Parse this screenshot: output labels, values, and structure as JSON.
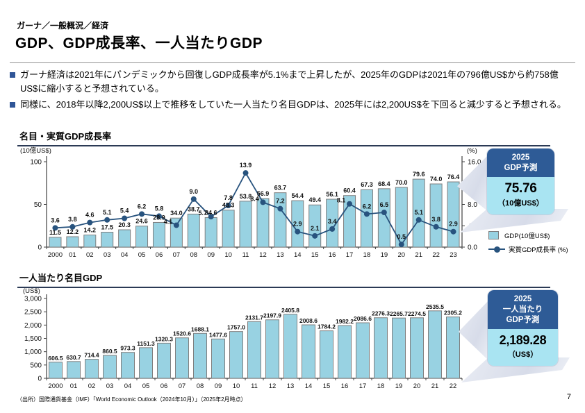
{
  "page": {
    "breadcrumb": "ガーナ／一般概況／経済",
    "title": "GDP、GDP成長率、一人当たりGDP",
    "bullets": [
      "ガーナ経済は2021年にパンデミックから回復しGDP成長率が5.1%まで上昇したが、2025年のGDPは2021年の796億US$から約758億US$に縮小すると予想されている。",
      "同様に、2018年以降2,200US$以上で推移をしていた一人当たり名目GDPは、2025年には2,200US$を下回ると減少すると予想される。"
    ],
    "source": "（出所）国際通貨基金（IMF）「World Economic Outlook（2024年10月）」（2025年2月時点）",
    "page_number": "7"
  },
  "colors": {
    "bar_fill": "#98D2E2",
    "bar_stroke": "#7f7f7f",
    "line": "#28537E",
    "panel_header": "#2E5B96",
    "panel_body": "#A9E4F2",
    "bullet_square": "#2F5597",
    "axis": "#404040",
    "label_text": "#111111"
  },
  "forecast_panels": [
    {
      "title_lines": [
        "2025",
        "GDP予測"
      ],
      "value": "75.76",
      "unit": "（10億US$）"
    },
    {
      "title_lines": [
        "2025",
        "一人当たり",
        "GDP予測"
      ],
      "value": "2,189.28",
      "unit": "（US$）"
    }
  ],
  "legend": [
    {
      "type": "bar",
      "label": "GDP(10億US$)"
    },
    {
      "type": "line",
      "label": "実質GDP成長率 (%)"
    }
  ],
  "chart_data": [
    {
      "type": "bar+line",
      "title": "名目・実質GDP成長率",
      "categories": [
        "2000",
        "01",
        "02",
        "03",
        "04",
        "05",
        "06",
        "07",
        "08",
        "09",
        "10",
        "11",
        "12",
        "13",
        "14",
        "15",
        "16",
        "17",
        "18",
        "19",
        "20",
        "21",
        "22",
        "23"
      ],
      "series": [
        {
          "name": "GDP(10億US$)",
          "kind": "bar",
          "axis": "left",
          "values": [
            11.5,
            12.2,
            14.2,
            17.5,
            20.3,
            24.6,
            28.9,
            34.0,
            38.7,
            34.6,
            43.3,
            53.8,
            56.9,
            63.7,
            54.4,
            49.4,
            56.1,
            60.4,
            67.3,
            68.4,
            70.0,
            79.6,
            74.0,
            76.4
          ]
        },
        {
          "name": "実質GDP成長率 (%)",
          "kind": "line",
          "axis": "right",
          "values": [
            3.6,
            3.8,
            4.6,
            5.1,
            5.4,
            6.2,
            5.8,
            4.1,
            9.0,
            5.7,
            7.8,
            13.9,
            8.4,
            7.2,
            2.9,
            2.1,
            3.4,
            8.1,
            6.2,
            6.5,
            0.5,
            5.1,
            3.8,
            2.9
          ]
        }
      ],
      "left_axis": {
        "label": "(10億US$)",
        "range": [
          0,
          100
        ],
        "ticks": [
          0,
          50,
          100
        ]
      },
      "right_axis": {
        "label": "(%)",
        "range": [
          0,
          16
        ],
        "ticks": [
          0,
          4,
          8,
          12,
          16
        ]
      },
      "grid": false,
      "legend_position": "right"
    },
    {
      "type": "bar",
      "title": "一人当たり名目GDP",
      "categories": [
        "2000",
        "01",
        "02",
        "03",
        "04",
        "05",
        "06",
        "07",
        "08",
        "09",
        "10",
        "11",
        "12",
        "13",
        "14",
        "15",
        "16",
        "17",
        "18",
        "19",
        "20",
        "21",
        "22"
      ],
      "values": [
        606.5,
        630.7,
        714.4,
        860.5,
        973.3,
        1151.3,
        1320.3,
        1520.6,
        1688.1,
        1477.6,
        1757.0,
        2131.7,
        2197.9,
        2405.8,
        2008.6,
        1784.2,
        1982.2,
        2086.6,
        2276.3,
        2265.7,
        2274.5,
        2535.5,
        2305.2
      ],
      "left_axis": {
        "label": "(US$)",
        "range": [
          0,
          3000
        ],
        "tick_step": 500
      },
      "grid": false
    }
  ]
}
